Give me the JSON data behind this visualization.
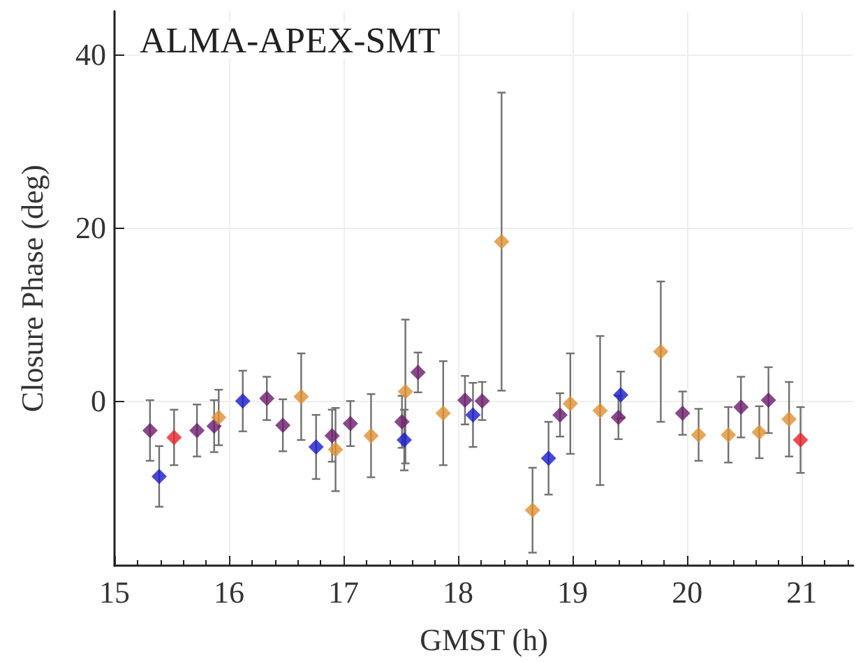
{
  "chart_data": {
    "type": "scatter",
    "xlabel": "GMST (h)",
    "ylabel": "Closure Phase (deg)",
    "annotations": [
      "ALMA-APEX-SMT"
    ],
    "xlim": [
      15,
      21.45
    ],
    "xticks": [
      15,
      16,
      17,
      18,
      19,
      20,
      21
    ],
    "ylim": [
      -19,
      45
    ],
    "yticks": [
      0,
      20,
      40
    ],
    "grid": true,
    "marker": "diamond",
    "series": [
      {
        "color": "#e8202a",
        "x": [
          15.52,
          20.99
        ],
        "values": [
          -4.2,
          -4.5
        ],
        "errors": [
          3.2,
          3.8
        ]
      },
      {
        "color": "#1a1acc",
        "x": [
          15.39,
          16.12,
          16.76,
          17.53,
          18.13,
          18.79,
          19.42
        ],
        "values": [
          -8.7,
          0,
          -5.3,
          -4.5,
          -1.6,
          -6.6,
          0.7
        ],
        "errors": [
          3.5,
          3.5,
          3.7,
          3.5,
          3.7,
          4.2,
          2.7
        ]
      },
      {
        "color": "#6b1a6b",
        "x": [
          15.31,
          15.72,
          15.87,
          16.33,
          16.47,
          16.9,
          17.06,
          17.51,
          17.65,
          18.06,
          18.21,
          18.89,
          19.4,
          19.96,
          20.47,
          20.71
        ],
        "values": [
          -3.4,
          -3.4,
          -2.9,
          0.3,
          -2.8,
          -4,
          -2.6,
          -2.4,
          3.3,
          0.1,
          0,
          -1.6,
          -1.9,
          -1.4,
          -0.7,
          0.1
        ],
        "errors": [
          3.5,
          3,
          3,
          2.5,
          3,
          3,
          2.6,
          3,
          2.3,
          2.8,
          2.2,
          2.5,
          2.5,
          2.5,
          3.5,
          3.8
        ]
      },
      {
        "color": "#e09030",
        "x": [
          15.91,
          16.63,
          16.93,
          17.24,
          17.54,
          17.87,
          18.38,
          18.65,
          18.98,
          19.24,
          19.77,
          20.1,
          20.36,
          20.63,
          20.89
        ],
        "values": [
          -1.9,
          0.5,
          -5.6,
          -4,
          1.1,
          -1.4,
          18.4,
          -12.6,
          -0.3,
          -1.1,
          5.7,
          -3.9,
          -3.9,
          -3.6,
          -2.1
        ],
        "errors": [
          3.2,
          5,
          4.8,
          4.8,
          8.3,
          6,
          17.2,
          4.9,
          5.8,
          8.6,
          8.1,
          3,
          3.2,
          3,
          4.3
        ]
      }
    ]
  }
}
